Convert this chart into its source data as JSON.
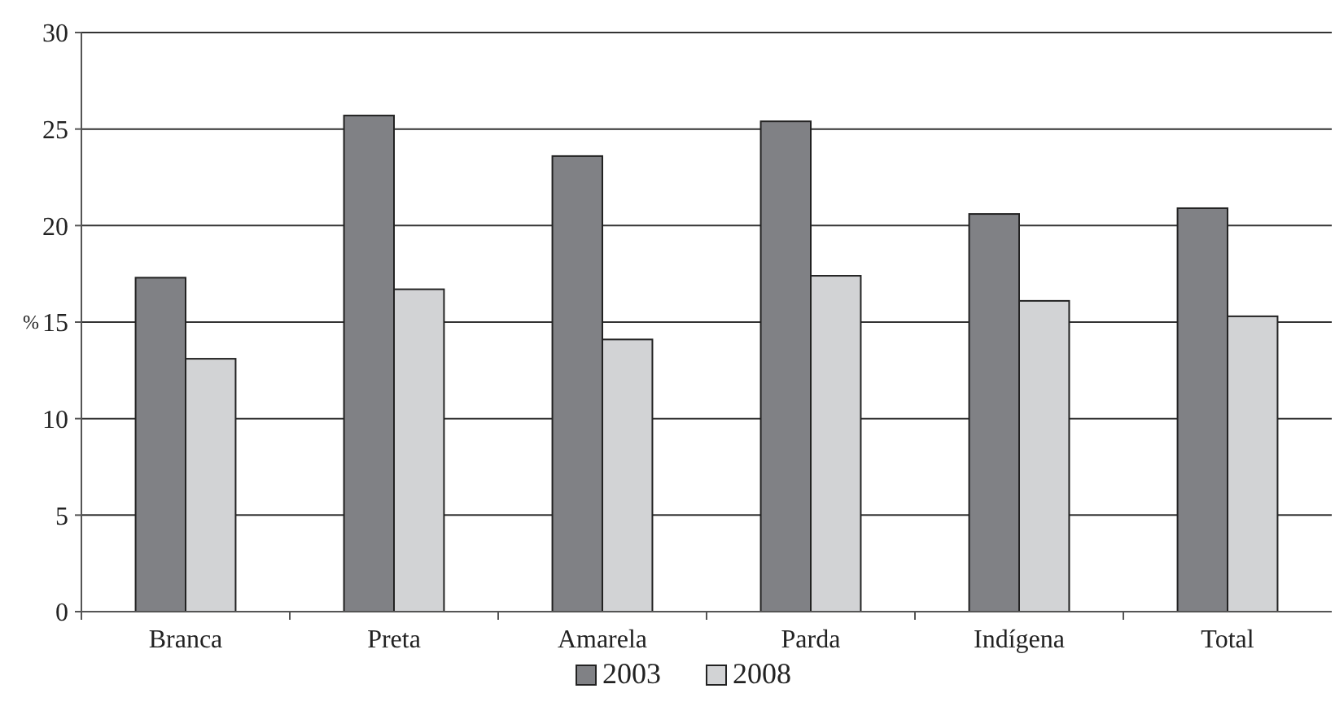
{
  "chart_data": {
    "type": "bar",
    "ylabel": "%",
    "categories": [
      "Branca",
      "Preta",
      "Amarela",
      "Parda",
      "Indígena",
      "Total"
    ],
    "series": [
      {
        "name": "2003",
        "color": "#808185",
        "values": [
          17.3,
          25.7,
          23.6,
          25.4,
          20.6,
          20.9
        ]
      },
      {
        "name": "2008",
        "color": "#d2d3d5",
        "values": [
          13.1,
          16.7,
          14.1,
          17.4,
          16.1,
          15.3
        ]
      }
    ],
    "ylim": [
      0,
      30
    ],
    "yticks": [
      0,
      5,
      10,
      15,
      20,
      25,
      30
    ],
    "grid": "y",
    "legend": "bottom"
  }
}
